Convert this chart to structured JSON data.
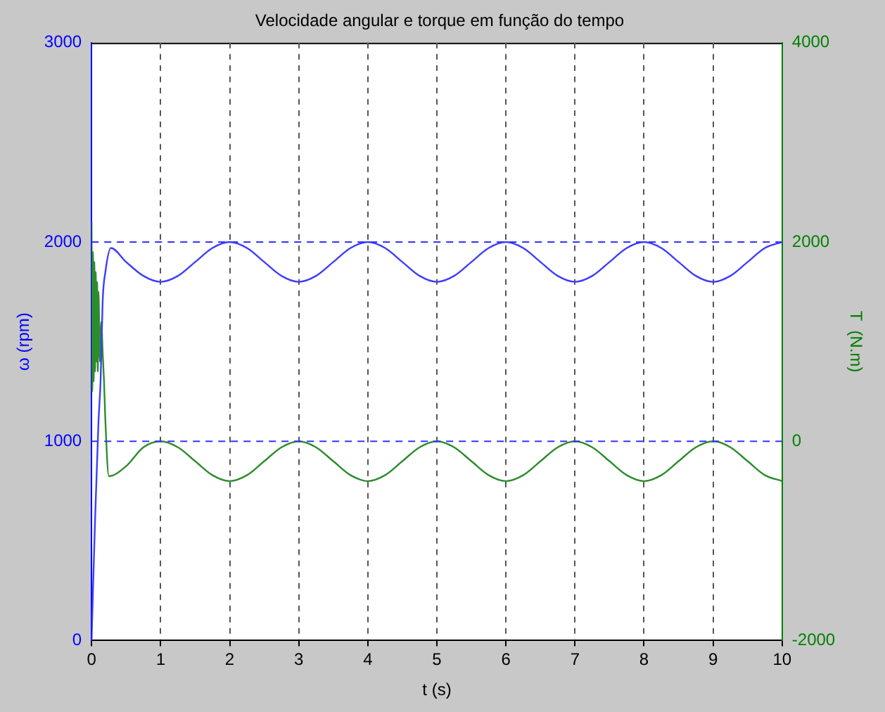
{
  "chart_data": {
    "type": "line",
    "title": "Velocidade angular e torque em função do tempo",
    "xlabel": "t (s)",
    "ylabel": "ω (rpm)",
    "y2label": "T  (N.m)",
    "xlim": [
      0,
      10
    ],
    "xticks": [
      0,
      1,
      2,
      3,
      4,
      5,
      6,
      7,
      8,
      9,
      10
    ],
    "ylim": [
      0,
      3000
    ],
    "yticks": [
      0,
      1000,
      2000,
      3000
    ],
    "y2lim": [
      -2000,
      4000
    ],
    "y2ticks": [
      -2000,
      0,
      2000,
      4000
    ],
    "grid": "x",
    "legend": false,
    "marker": "none",
    "line_style": "solid",
    "ref_lines": [
      {
        "axis": "y",
        "value": 2000,
        "color": "#3333ff",
        "line_style": "dashed"
      },
      {
        "axis": "y",
        "value": 1000,
        "color": "#3333ff",
        "line_style": "dashed"
      }
    ],
    "series": [
      {
        "color": "#3d3dff",
        "x": [
          0,
          0.02,
          0.05,
          0.08,
          0.1,
          0.13,
          0.16,
          0.2,
          0.28,
          0.5,
          0.75,
          1,
          1.25,
          1.5,
          1.75,
          2,
          2.25,
          2.5,
          2.75,
          3,
          3.25,
          3.5,
          3.75,
          4,
          4.25,
          4.5,
          4.75,
          5,
          5.25,
          5.5,
          5.75,
          6,
          6.25,
          6.5,
          6.75,
          7,
          7.25,
          7.5,
          7.75,
          8,
          8.25,
          8.5,
          8.75,
          9,
          9.25,
          9.5,
          9.75,
          10
        ],
        "values": [
          0,
          250,
          600,
          900,
          1100,
          1300,
          1700,
          1850,
          1970,
          1900,
          1830,
          1800,
          1830,
          1900,
          1970,
          2000,
          1970,
          1900,
          1830,
          1800,
          1830,
          1900,
          1970,
          2000,
          1970,
          1900,
          1830,
          1800,
          1830,
          1900,
          1970,
          2000,
          1970,
          1900,
          1830,
          1800,
          1830,
          1900,
          1970,
          2000,
          1970,
          1900,
          1830,
          1800,
          1830,
          1900,
          1970,
          2000
        ]
      },
      {
        "color": "#2e8b2e",
        "axis": "y2",
        "x": [
          0,
          0.01,
          0.02,
          0.03,
          0.04,
          0.05,
          0.06,
          0.07,
          0.08,
          0.09,
          0.1,
          0.12,
          0.14,
          0.16,
          0.18,
          0.2,
          0.25,
          0.5,
          0.75,
          1,
          1.25,
          1.5,
          1.75,
          2,
          2.25,
          2.5,
          2.75,
          3,
          3.25,
          3.5,
          3.75,
          4,
          4.25,
          4.5,
          4.75,
          5,
          5.25,
          5.5,
          5.75,
          6,
          6.25,
          6.5,
          6.75,
          7,
          7.25,
          7.5,
          7.75,
          8,
          8.25,
          8.5,
          8.75,
          9,
          9.25,
          9.5,
          9.75,
          10
        ],
        "values": [
          2200,
          500,
          1900,
          600,
          1800,
          700,
          1700,
          800,
          1600,
          700,
          1500,
          800,
          1200,
          900,
          600,
          200,
          -350,
          -250,
          -60,
          0,
          -60,
          -200,
          -340,
          -400,
          -340,
          -200,
          -60,
          0,
          -60,
          -200,
          -340,
          -400,
          -340,
          -200,
          -60,
          0,
          -60,
          -200,
          -340,
          -400,
          -340,
          -200,
          -60,
          0,
          -60,
          -200,
          -340,
          -400,
          -340,
          -200,
          -60,
          0,
          -60,
          -200,
          -340,
          -400
        ]
      }
    ]
  }
}
